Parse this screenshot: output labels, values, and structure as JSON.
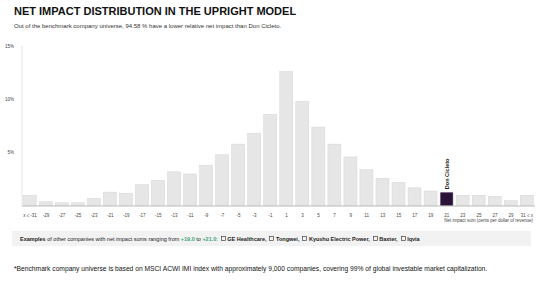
{
  "chart_data": {
    "type": "bar",
    "title": "NET IMPACT DISTRIBUTION IN THE UPRIGHT MODEL",
    "subtitle": "Out of the benchmark company universe, 94.58 % have a lower relative net impact than Don Cicleto.",
    "x_label": "Net impact sum (cents per dollar of revenue)",
    "categories": [
      "x ≤ -31",
      "-29",
      "-27",
      "-25",
      "-23",
      "-21",
      "-19",
      "-17",
      "-15",
      "-13",
      "-11",
      "-9",
      "-7",
      "-5",
      "-3",
      "-1",
      "1",
      "3",
      "5",
      "7",
      "9",
      "11",
      "13",
      "15",
      "17",
      "19",
      "21",
      "23",
      "25",
      "27",
      "29",
      "31 ≤ x"
    ],
    "values": [
      1.0,
      0.4,
      0.3,
      0.3,
      0.7,
      1.3,
      1.2,
      2.0,
      2.4,
      3.2,
      3.0,
      3.8,
      4.8,
      5.8,
      6.8,
      8.6,
      12.6,
      9.8,
      7.4,
      5.8,
      4.6,
      3.4,
      2.6,
      2.2,
      1.7,
      1.4,
      1.3,
      1.0,
      1.0,
      0.9,
      0.5,
      1.0
    ],
    "colors": [
      "#e6e6e6",
      "#e6e6e6",
      "#e6e6e6",
      "#e6e6e6",
      "#e6e6e6",
      "#e6e6e6",
      "#e6e6e6",
      "#e6e6e6",
      "#e6e6e6",
      "#e6e6e6",
      "#e6e6e6",
      "#e6e6e6",
      "#e6e6e6",
      "#e6e6e6",
      "#e6e6e6",
      "#e6e6e6",
      "#e6e6e6",
      "#e6e6e6",
      "#e6e6e6",
      "#e6e6e6",
      "#e6e6e6",
      "#e6e6e6",
      "#e6e6e6",
      "#e6e6e6",
      "#e6e6e6",
      "#e6e6e6",
      "#2b1238",
      "#e6e6e6",
      "#e6e6e6",
      "#e6e6e6",
      "#e6e6e6",
      "#e6e6e6"
    ],
    "ylim": [
      0,
      15
    ],
    "yticks": [
      {
        "value": 5,
        "label": "5%"
      },
      {
        "value": 10,
        "label": "10%"
      },
      {
        "value": 15,
        "label": "15%"
      }
    ],
    "grid": false,
    "annotations": [
      {
        "text": "Don Cicleto",
        "x": "21"
      }
    ],
    "examples": {
      "lead": "Examples",
      "text": "of other companies with net impact sums ranging from",
      "from": "+19.0",
      "joiner": "to",
      "to": "+21.0",
      "colon": ":",
      "separator": ",",
      "companies": [
        "GE Healthcare",
        "Tongwei",
        "Kyushu Electric Power",
        "Baxter",
        "Iqvia"
      ]
    },
    "footnote": "*Benchmark company universe is based on MSCI ACWI IMI index with approximately 9,000 companies, covering 99% of global investable market capitalization."
  }
}
